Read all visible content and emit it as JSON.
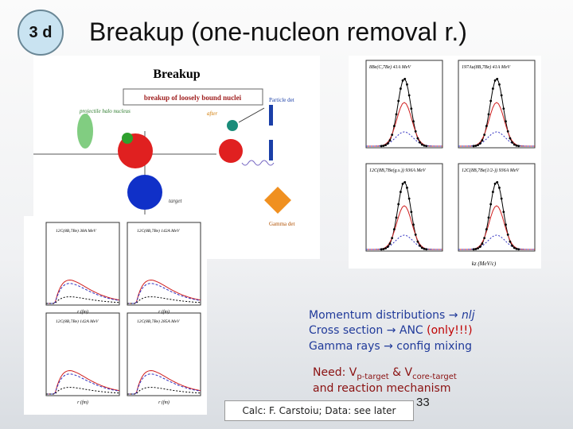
{
  "slide": {
    "badge": "3 d",
    "title": "Breakup (one-nucleon removal r.)",
    "diagram": {
      "heading": "Breakup",
      "banner": "breakup of loosely bound nuclei",
      "projectile": "projectile halo nucleus",
      "after": "after",
      "particle_det": "Particle det",
      "target": "target",
      "gamma_det": "Gamma det"
    },
    "right_plots": {
      "panels": [
        "8Be(C,7Be) 41A MeV",
        "197Au(8B,7Be) 41A MeV",
        "12C(8B,7Be(g.s.)) 936A MeV",
        "12C(8B,7Be(1/2-)) 936A MeV"
      ],
      "x_label": "kz (MeV/c)"
    },
    "left_plots": {
      "panels": [
        "12C(8B,7Be) 38A MeV",
        "12C(8B,7Be) 142A MeV",
        "12C(8B,7Be) 142A MeV",
        "12C(8B,7Be) 285A MeV"
      ],
      "x_label": "r (fm)"
    },
    "bullets": [
      {
        "text": "Momentum distributions → ",
        "italic": "nlj"
      },
      {
        "text": "Cross section → ANC ",
        "highlight": "(only!!!)"
      },
      {
        "text": "Gamma rays → config mixing"
      }
    ],
    "need": {
      "lead": "Need: V",
      "sub1": "p-target",
      "mid": " & V",
      "sub2": "core-target",
      "line2": "and reaction mechanism"
    },
    "credit": "Calc: F. Carstoiu; Data: see later",
    "page_number": "33"
  }
}
